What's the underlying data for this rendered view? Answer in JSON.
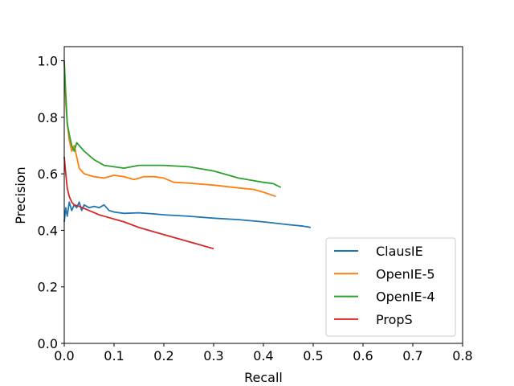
{
  "chart_data": {
    "type": "line",
    "title": "",
    "xlabel": "Recall",
    "ylabel": "Precision",
    "xlim": [
      0.0,
      0.8
    ],
    "ylim": [
      0.0,
      1.05
    ],
    "xticks": [
      "0.0",
      "0.1",
      "0.2",
      "0.3",
      "0.4",
      "0.5",
      "0.6",
      "0.7",
      "0.8"
    ],
    "yticks": [
      "0.0",
      "0.2",
      "0.4",
      "0.6",
      "0.8",
      "1.0"
    ],
    "grid": false,
    "legend_position": "lower-right",
    "series": [
      {
        "name": "ClausIE",
        "color": "#1f77b4",
        "points": [
          [
            0.0,
            0.43
          ],
          [
            0.003,
            0.48
          ],
          [
            0.006,
            0.45
          ],
          [
            0.01,
            0.5
          ],
          [
            0.015,
            0.47
          ],
          [
            0.02,
            0.49
          ],
          [
            0.025,
            0.48
          ],
          [
            0.03,
            0.5
          ],
          [
            0.035,
            0.47
          ],
          [
            0.04,
            0.49
          ],
          [
            0.05,
            0.48
          ],
          [
            0.06,
            0.485
          ],
          [
            0.07,
            0.48
          ],
          [
            0.08,
            0.49
          ],
          [
            0.09,
            0.47
          ],
          [
            0.1,
            0.465
          ],
          [
            0.12,
            0.46
          ],
          [
            0.15,
            0.462
          ],
          [
            0.18,
            0.458
          ],
          [
            0.2,
            0.455
          ],
          [
            0.25,
            0.45
          ],
          [
            0.3,
            0.443
          ],
          [
            0.35,
            0.438
          ],
          [
            0.4,
            0.43
          ],
          [
            0.45,
            0.42
          ],
          [
            0.48,
            0.415
          ],
          [
            0.495,
            0.41
          ]
        ]
      },
      {
        "name": "OpenIE-5",
        "color": "#ff7f0e",
        "points": [
          [
            0.0,
            1.0
          ],
          [
            0.003,
            0.85
          ],
          [
            0.006,
            0.78
          ],
          [
            0.01,
            0.72
          ],
          [
            0.015,
            0.68
          ],
          [
            0.02,
            0.7
          ],
          [
            0.025,
            0.66
          ],
          [
            0.03,
            0.62
          ],
          [
            0.04,
            0.6
          ],
          [
            0.06,
            0.59
          ],
          [
            0.08,
            0.585
          ],
          [
            0.1,
            0.595
          ],
          [
            0.12,
            0.59
          ],
          [
            0.14,
            0.58
          ],
          [
            0.16,
            0.59
          ],
          [
            0.18,
            0.59
          ],
          [
            0.2,
            0.585
          ],
          [
            0.22,
            0.57
          ],
          [
            0.25,
            0.567
          ],
          [
            0.3,
            0.56
          ],
          [
            0.35,
            0.55
          ],
          [
            0.38,
            0.545
          ],
          [
            0.4,
            0.535
          ],
          [
            0.425,
            0.52
          ]
        ]
      },
      {
        "name": "OpenIE-4",
        "color": "#2ca02c",
        "points": [
          [
            0.0,
            1.0
          ],
          [
            0.003,
            0.88
          ],
          [
            0.006,
            0.78
          ],
          [
            0.01,
            0.74
          ],
          [
            0.015,
            0.7
          ],
          [
            0.02,
            0.68
          ],
          [
            0.025,
            0.71
          ],
          [
            0.03,
            0.7
          ],
          [
            0.04,
            0.68
          ],
          [
            0.06,
            0.65
          ],
          [
            0.08,
            0.63
          ],
          [
            0.1,
            0.625
          ],
          [
            0.12,
            0.62
          ],
          [
            0.15,
            0.63
          ],
          [
            0.2,
            0.63
          ],
          [
            0.25,
            0.625
          ],
          [
            0.3,
            0.61
          ],
          [
            0.35,
            0.585
          ],
          [
            0.4,
            0.57
          ],
          [
            0.42,
            0.565
          ],
          [
            0.435,
            0.552
          ]
        ]
      },
      {
        "name": "PropS",
        "color": "#d62728",
        "points": [
          [
            0.0,
            0.66
          ],
          [
            0.003,
            0.6
          ],
          [
            0.006,
            0.55
          ],
          [
            0.01,
            0.52
          ],
          [
            0.015,
            0.5
          ],
          [
            0.02,
            0.49
          ],
          [
            0.03,
            0.485
          ],
          [
            0.05,
            0.47
          ],
          [
            0.07,
            0.455
          ],
          [
            0.1,
            0.44
          ],
          [
            0.12,
            0.43
          ],
          [
            0.15,
            0.41
          ],
          [
            0.18,
            0.395
          ],
          [
            0.2,
            0.385
          ],
          [
            0.22,
            0.375
          ],
          [
            0.25,
            0.36
          ],
          [
            0.28,
            0.345
          ],
          [
            0.3,
            0.335
          ]
        ]
      }
    ]
  }
}
